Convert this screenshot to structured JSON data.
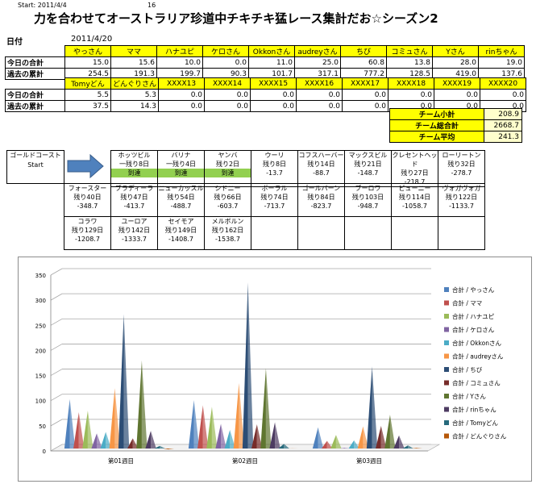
{
  "header": {
    "start_label": "Start: 2011/4/4",
    "start_num": "16",
    "title": "力を合わせてオーストラリア珍道中チキチキ猛レース集計だお☆シーズン2",
    "date_label": "日付",
    "date_value": "2011/4/20"
  },
  "score_table": {
    "row_labels": [
      "今日の合計",
      "過去の累計"
    ],
    "groups": [
      {
        "names": [
          "やっさん",
          "ママ",
          "ハナユピ",
          "ケロさん",
          "Okkonさん",
          "audreyさん",
          "ちび",
          "コミュさん",
          "Yさん",
          "rinちゃん"
        ],
        "today": [
          "15.0",
          "15.6",
          "10.0",
          "0.0",
          "11.0",
          "25.0",
          "60.8",
          "13.8",
          "28.0",
          "19.0"
        ],
        "total": [
          "254.5",
          "191.3",
          "199.7",
          "90.3",
          "101.7",
          "317.1",
          "777.2",
          "128.5",
          "419.0",
          "137.6"
        ]
      },
      {
        "names": [
          "Tomyどん",
          "どんぐりさん",
          "XXXX13",
          "XXXX14",
          "XXXX15",
          "XXXX16",
          "XXXX17",
          "XXXX18",
          "XXXX19",
          "XXXX20"
        ],
        "today": [
          "5.5",
          "5.3",
          "0.0",
          "0.0",
          "0.0",
          "0.0",
          "0.0",
          "0.0",
          "0.0",
          "0.0"
        ],
        "total": [
          "37.5",
          "14.3",
          "0.0",
          "0.0",
          "0.0",
          "0.0",
          "0.0",
          "0.0",
          "0.0",
          "0.0"
        ]
      }
    ]
  },
  "team": [
    {
      "label": "チーム小計",
      "value": "208.9"
    },
    {
      "label": "チーム総合計",
      "value": "2668.7"
    },
    {
      "label": "チーム平均",
      "value": "241.3"
    }
  ],
  "race": {
    "start_line1": "ゴールドコースト",
    "start_line2": "Start",
    "rows": [
      [
        {
          "city": "ホッツビル",
          "remain": "一残り8日",
          "status": "到達"
        },
        {
          "city": "バリナ",
          "remain": "一残り4日",
          "status": "到達"
        },
        {
          "city": "ヤンバ",
          "remain": "残り2日",
          "status": "到達"
        },
        {
          "city": "ウーリ",
          "remain": "残り8日",
          "status": "-13.7"
        },
        {
          "city": "コフスハーバー",
          "remain": "残り14日",
          "status": "-88.7"
        },
        {
          "city": "マックスビル",
          "remain": "残り21日",
          "status": "-148.7"
        },
        {
          "city": "クレセントヘッド",
          "remain": "残り27日",
          "status": "-218.7"
        },
        {
          "city": "ローリートン",
          "remain": "残り32日",
          "status": "-278.7"
        }
      ],
      [
        {
          "city": "フォースター",
          "remain": "残り40日",
          "status": "-348.7"
        },
        {
          "city": "ブラディーラ",
          "remain": "残り47日",
          "status": "-413.7"
        },
        {
          "city": "ニューカッスル",
          "remain": "残り54日",
          "status": "-488.7"
        },
        {
          "city": "シドニー",
          "remain": "残り66日",
          "status": "-603.7"
        },
        {
          "city": "ボーラル",
          "remain": "残り74日",
          "status": "-713.7"
        },
        {
          "city": "ゴールバーン",
          "remain": "残り84日",
          "status": "-823.7"
        },
        {
          "city": "ブーロワ",
          "remain": "残り103日",
          "status": "-948.7"
        },
        {
          "city": "ビューニー",
          "remain": "残り114日",
          "status": "-1058.7"
        },
        {
          "city": "ヴォガヴォガ",
          "remain": "残り122日",
          "status": "-1133.7"
        }
      ],
      [
        {
          "city": "コラワ",
          "remain": "残り129日",
          "status": "-1208.7"
        },
        {
          "city": "ユーロア",
          "remain": "残り142日",
          "status": "-1333.7"
        },
        {
          "city": "セイモア",
          "remain": "残り149日",
          "status": "-1408.7"
        },
        {
          "city": "メルボルン",
          "remain": "残り162日",
          "status": "-1538.7"
        }
      ]
    ]
  },
  "chart_data": {
    "type": "bar",
    "title": "",
    "xlabel": "",
    "ylabel": "",
    "ylim": [
      0,
      350
    ],
    "yticks": [
      0,
      50,
      100,
      150,
      200,
      250,
      300,
      350
    ],
    "grid": true,
    "legend_position": "right",
    "categories": [
      "第01週目",
      "第02週目",
      "第03週目"
    ],
    "series": [
      {
        "name": "合計 / やっさん",
        "color": "#4f81bd",
        "values": [
          103,
          101,
          47
        ]
      },
      {
        "name": "合計 / ママ",
        "color": "#c0504d",
        "values": [
          77,
          91,
          20
        ]
      },
      {
        "name": "合計 / ハナユピ",
        "color": "#9bbb59",
        "values": [
          80,
          88,
          32
        ]
      },
      {
        "name": "合計 / ケロさん",
        "color": "#8064a2",
        "values": [
          35,
          54,
          6
        ]
      },
      {
        "name": "合計 / Okkonさん",
        "color": "#4bacc6",
        "values": [
          38,
          42,
          21
        ]
      },
      {
        "name": "合計 / audreyさん",
        "color": "#f79646",
        "values": [
          125,
          135,
          49
        ]
      },
      {
        "name": "合計 / ちび",
        "color": "#2c4d75",
        "values": [
          272,
          335,
          168
        ]
      },
      {
        "name": "合計 / コミュさん",
        "color": "#772c2a",
        "values": [
          25,
          53,
          50
        ]
      },
      {
        "name": "合計 / Yさん",
        "color": "#5f7530",
        "values": [
          180,
          165,
          72
        ]
      },
      {
        "name": "合計 / rinちゃん",
        "color": "#4d3b62",
        "values": [
          40,
          57,
          31
        ]
      },
      {
        "name": "合計 / Tomyどん",
        "color": "#276a7c",
        "values": [
          10,
          14,
          11
        ]
      },
      {
        "name": "合計 / どんぐりさん",
        "color": "#b65708",
        "values": [
          3,
          5,
          6
        ]
      }
    ]
  }
}
